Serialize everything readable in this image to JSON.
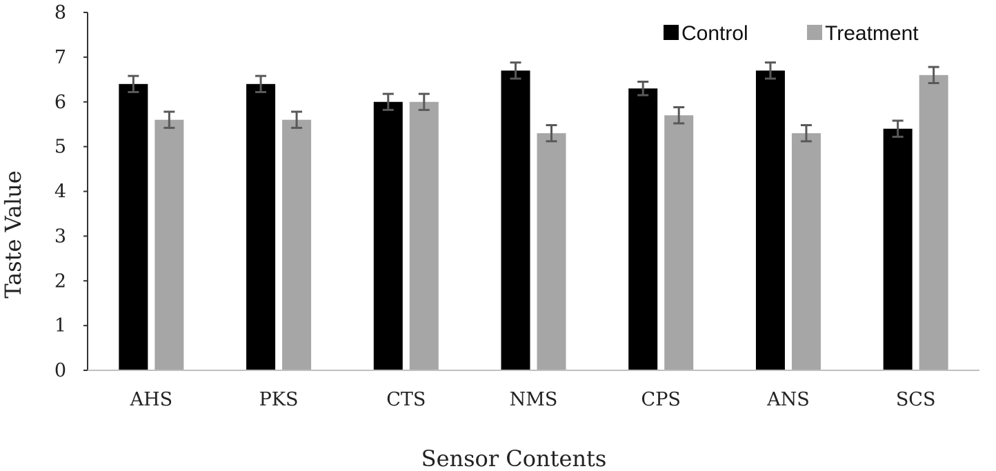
{
  "chart_data": {
    "type": "bar",
    "title": "",
    "xlabel": "Sensor Contents",
    "ylabel": "Taste Value",
    "categories": [
      "AHS",
      "PKS",
      "CTS",
      "NMS",
      "CPS",
      "ANS",
      "SCS"
    ],
    "ylim": [
      0,
      8
    ],
    "yticks": [
      "0",
      "1",
      "2",
      "3",
      "4",
      "5",
      "6",
      "7",
      "8"
    ],
    "grid": false,
    "legend_position": "top-right",
    "series": [
      {
        "name": "Control",
        "color": "#000000",
        "values": [
          6.4,
          6.4,
          6.0,
          6.7,
          6.3,
          6.7,
          5.4
        ],
        "errors": [
          0.18,
          0.18,
          0.18,
          0.18,
          0.15,
          0.18,
          0.18
        ]
      },
      {
        "name": "Treatment",
        "color": "#a6a6a6",
        "values": [
          5.6,
          5.6,
          6.0,
          5.3,
          5.7,
          5.3,
          6.6
        ],
        "errors": [
          0.18,
          0.18,
          0.18,
          0.18,
          0.18,
          0.18,
          0.18
        ]
      }
    ],
    "error_bar_color": "#595959"
  }
}
